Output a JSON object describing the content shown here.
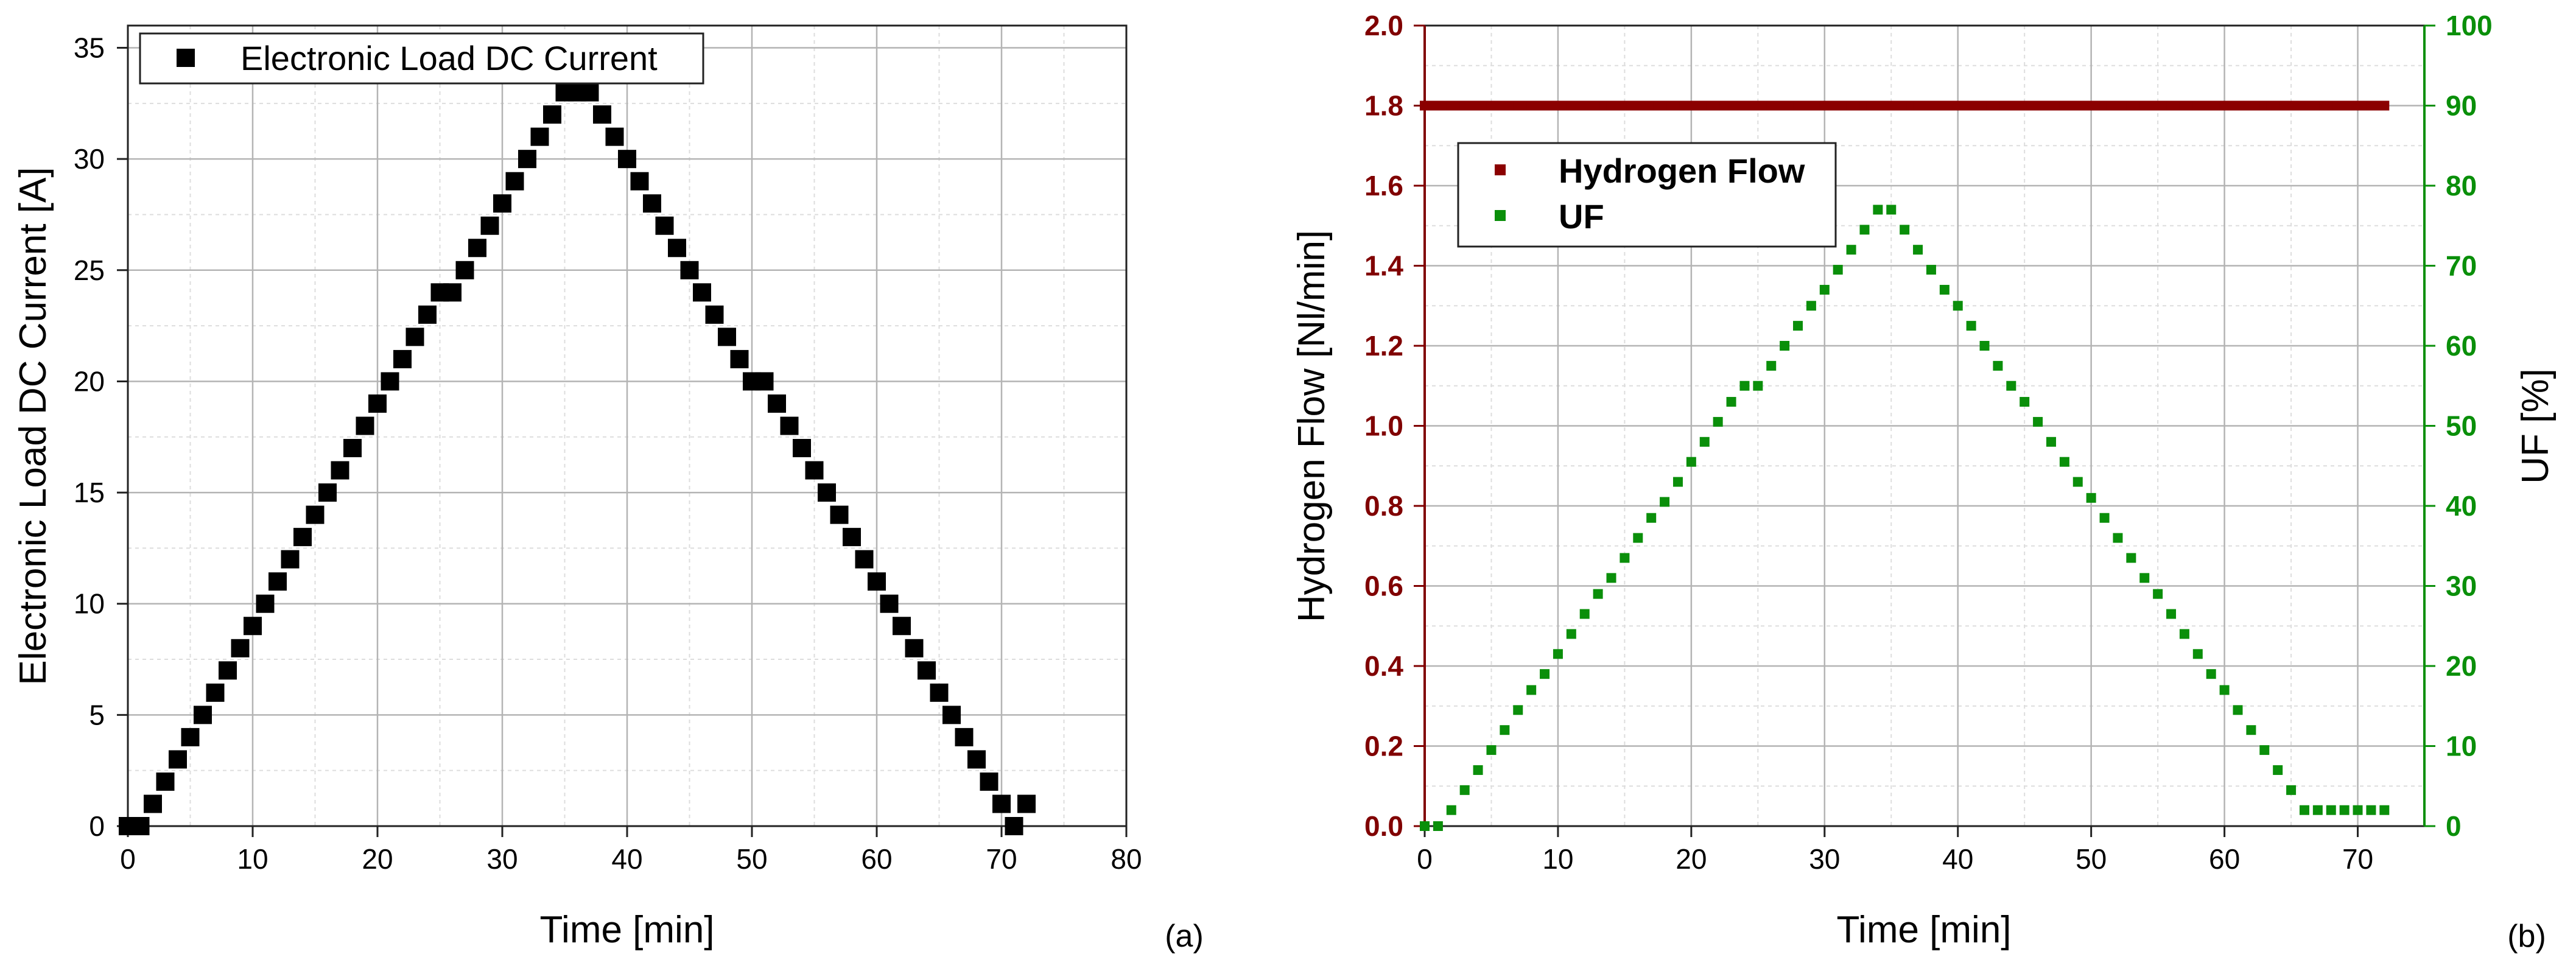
{
  "chart_data": [
    {
      "panel_label": "(a)",
      "type": "scatter",
      "xlabel": "Time [min]",
      "ylabel": "Electronic Load DC Current [A]",
      "xlim": [
        0,
        80
      ],
      "ylim": [
        0,
        36
      ],
      "xticks": [
        "0",
        "10",
        "20",
        "30",
        "40",
        "50",
        "60",
        "70",
        "80"
      ],
      "yticks": [
        "0",
        "5",
        "10",
        "15",
        "20",
        "25",
        "30",
        "35"
      ],
      "grid": true,
      "legend_position": "top-left",
      "marker_color": "#000000",
      "series": [
        {
          "name": "Electronic Load DC Current",
          "x": [
            0,
            1,
            2,
            3,
            4,
            5,
            6,
            7,
            8,
            9,
            10,
            11,
            12,
            13,
            14,
            15,
            16,
            17,
            18,
            19,
            20,
            21,
            22,
            23,
            24,
            25,
            26,
            27,
            28,
            29,
            30,
            31,
            32,
            33,
            34,
            35,
            36,
            37,
            38,
            39,
            40,
            41,
            42,
            43,
            44,
            45,
            46,
            47,
            48,
            49,
            50,
            51,
            52,
            53,
            54,
            55,
            56,
            57,
            58,
            59,
            60,
            61,
            62,
            63,
            64,
            65,
            66,
            67,
            68,
            69,
            70,
            71,
            72
          ],
          "y": [
            0,
            0,
            1,
            2,
            3,
            4,
            5,
            6,
            7,
            8,
            9,
            10,
            11,
            12,
            13,
            14,
            15,
            16,
            17,
            18,
            19,
            20,
            21,
            22,
            23,
            24,
            24,
            25,
            26,
            27,
            28,
            29,
            30,
            31,
            32,
            33,
            33,
            33,
            32,
            31,
            30,
            29,
            28,
            27,
            26,
            25,
            24,
            23,
            22,
            21,
            20,
            20,
            19,
            18,
            17,
            16,
            15,
            14,
            13,
            12,
            11,
            10,
            9,
            8,
            7,
            6,
            5,
            4,
            3,
            2,
            1,
            0,
            1
          ]
        }
      ]
    },
    {
      "panel_label": "(b)",
      "type": "scatter",
      "xlabel": "Time [min]",
      "ylabel_left": "Hydrogen Flow [Nl/min]",
      "ylabel_right": "UF [%]",
      "xlim": [
        0,
        75
      ],
      "ylim_left": [
        0,
        2.0
      ],
      "ylim_right": [
        0,
        100
      ],
      "xticks": [
        "0",
        "10",
        "20",
        "30",
        "40",
        "50",
        "60",
        "70"
      ],
      "yticks_left": [
        "0.0",
        "0.2",
        "0.4",
        "0.6",
        "0.8",
        "1.0",
        "1.2",
        "1.4",
        "1.6",
        "1.8",
        "2.0"
      ],
      "yticks_right": [
        "0",
        "10",
        "20",
        "30",
        "40",
        "50",
        "60",
        "70",
        "80",
        "90",
        "100"
      ],
      "grid": true,
      "legend_position": "upper-left",
      "left_axis_color": "#800000",
      "right_axis_color": "#0a8f0a",
      "series": [
        {
          "name": "Hydrogen Flow",
          "axis": "left",
          "color": "#8b0000",
          "x_start": 0,
          "x_end": 72,
          "x_step": 0.5,
          "value": 1.8
        },
        {
          "name": "UF",
          "axis": "right",
          "color": "#0a8f0a",
          "x": [
            0,
            1,
            2,
            3,
            4,
            5,
            6,
            7,
            8,
            9,
            10,
            11,
            12,
            13,
            14,
            15,
            16,
            17,
            18,
            19,
            20,
            21,
            22,
            23,
            24,
            25,
            26,
            27,
            28,
            29,
            30,
            31,
            32,
            33,
            34,
            35,
            36,
            37,
            38,
            39,
            40,
            41,
            42,
            43,
            44,
            45,
            46,
            47,
            48,
            49,
            50,
            51,
            52,
            53,
            54,
            55,
            56,
            57,
            58,
            59,
            60,
            61,
            62,
            63,
            64,
            65,
            66,
            67,
            68,
            69,
            70,
            71,
            72
          ],
          "y": [
            0,
            0,
            2,
            4.5,
            7,
            9.5,
            12,
            14.5,
            17,
            19,
            21.5,
            24,
            26.5,
            29,
            31,
            33.5,
            36,
            38.5,
            40.5,
            43,
            45.5,
            48,
            50.5,
            53,
            55,
            55,
            57.5,
            60,
            62.5,
            65,
            67,
            69.5,
            72,
            74.5,
            77,
            77,
            74.5,
            72,
            69.5,
            67,
            65,
            62.5,
            60,
            57.5,
            55,
            53,
            50.5,
            48,
            45.5,
            43,
            41,
            38.5,
            36,
            33.5,
            31,
            29,
            26.5,
            24,
            21.5,
            19,
            17,
            14.5,
            12,
            9.5,
            7,
            4.5,
            2,
            2,
            2,
            2,
            2,
            2,
            2
          ]
        }
      ]
    }
  ]
}
